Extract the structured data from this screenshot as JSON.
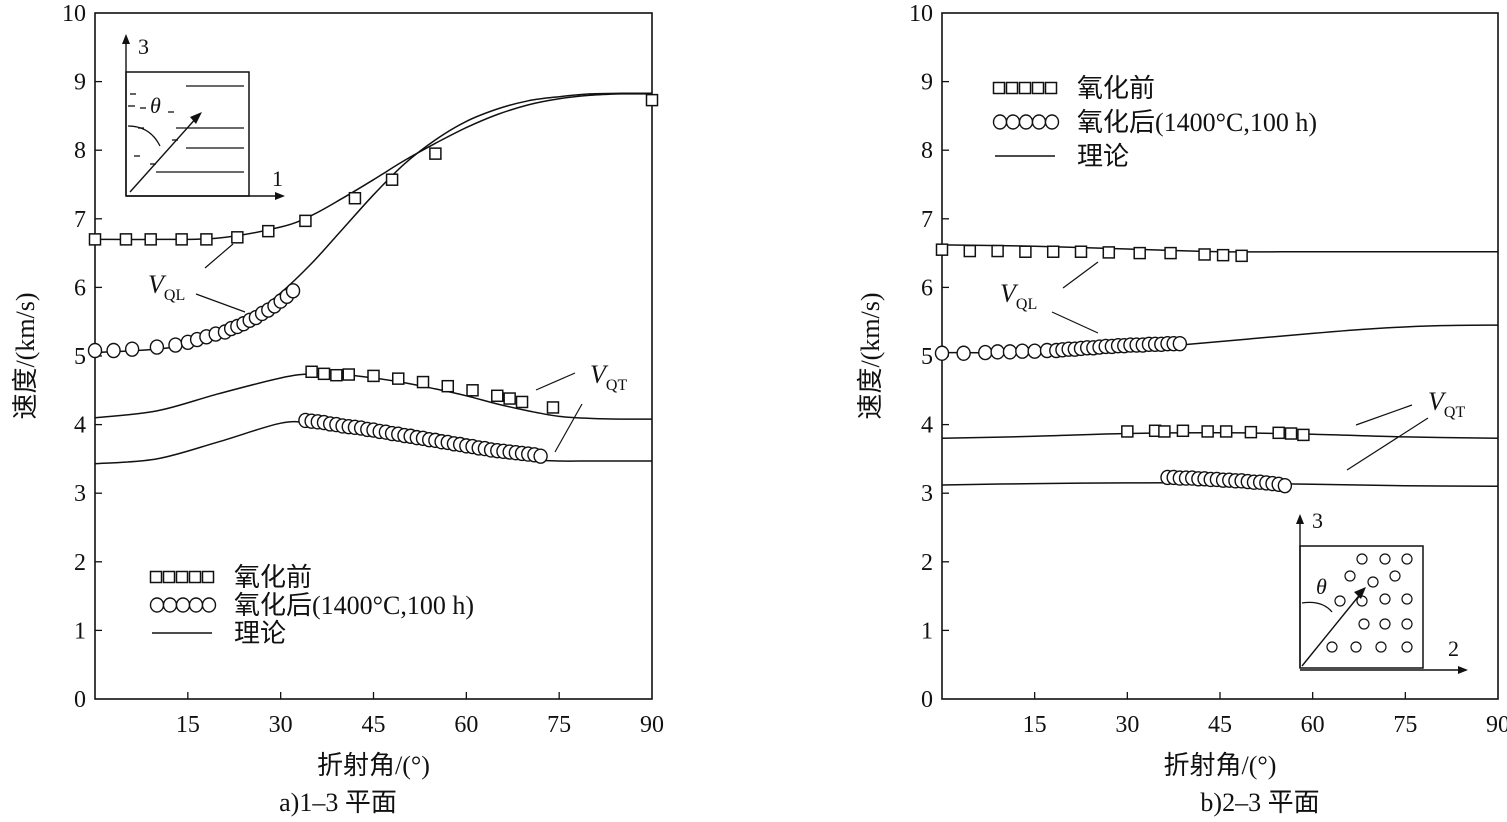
{
  "chart_data": [
    {
      "type": "scatter",
      "caption": "a)1–3 平面",
      "xlabel": "折射角/(°)",
      "ylabel": "速度/(km/s)",
      "xlim": [
        0,
        90
      ],
      "ylim": [
        0,
        10
      ],
      "xticks": [
        "15",
        "30",
        "45",
        "60",
        "75",
        "90"
      ],
      "yticks": [
        "0",
        "1",
        "2",
        "3",
        "4",
        "5",
        "6",
        "7",
        "8",
        "9",
        "10"
      ],
      "legend": {
        "placement": "bottom-left",
        "entries": [
          "氧化前",
          "氧化后(1400°C,100 h)",
          "理论"
        ]
      },
      "annotations": {
        "vql": "V",
        "vql_sub": "QL",
        "vqt": "V",
        "vqt_sub": "QT"
      },
      "inset": {
        "axis_vertical": "3",
        "axis_horizontal": "1",
        "angle": "θ"
      },
      "series": [
        {
          "name": "理论",
          "curve": "upper-ql",
          "x": [
            0,
            10,
            20,
            30,
            35,
            40,
            45,
            50,
            55,
            60,
            65,
            70,
            75,
            80,
            85,
            90
          ],
          "y": [
            6.7,
            6.7,
            6.72,
            6.88,
            7.05,
            7.3,
            7.57,
            7.85,
            8.1,
            8.33,
            8.52,
            8.66,
            8.75,
            8.8,
            8.82,
            8.82
          ]
        },
        {
          "name": "理论",
          "curve": "lower-ql",
          "x": [
            0,
            10,
            15,
            20,
            25,
            30,
            35,
            40,
            45,
            50,
            55,
            60,
            65,
            70,
            75,
            80,
            85,
            90
          ],
          "y": [
            5.05,
            5.1,
            5.18,
            5.33,
            5.58,
            5.92,
            6.35,
            6.85,
            7.35,
            7.8,
            8.15,
            8.42,
            8.6,
            8.72,
            8.78,
            8.82,
            8.83,
            8.83
          ]
        },
        {
          "name": "理论",
          "curve": "upper-qt",
          "x": [
            0,
            10,
            20,
            30,
            35,
            40,
            45,
            50,
            55,
            60,
            65,
            70,
            75,
            80,
            85,
            90
          ],
          "y": [
            4.1,
            4.2,
            4.45,
            4.68,
            4.74,
            4.73,
            4.68,
            4.61,
            4.52,
            4.42,
            4.3,
            4.2,
            4.12,
            4.09,
            4.08,
            4.08
          ]
        },
        {
          "name": "理论",
          "curve": "lower-qt",
          "x": [
            0,
            10,
            20,
            30,
            35,
            40,
            45,
            50,
            55,
            60,
            65,
            70,
            75,
            80,
            85,
            90
          ],
          "y": [
            3.43,
            3.5,
            3.75,
            4.02,
            4.02,
            3.95,
            3.87,
            3.8,
            3.72,
            3.64,
            3.55,
            3.49,
            3.47,
            3.47,
            3.47,
            3.47
          ]
        },
        {
          "name": "氧化前",
          "marker": "square",
          "x": [
            0,
            5,
            9,
            14,
            18,
            23,
            28,
            34,
            42,
            48,
            55,
            90,
            35,
            37,
            39,
            41,
            45,
            49,
            53,
            57,
            61,
            65,
            67,
            69,
            74
          ],
          "y": [
            6.7,
            6.7,
            6.7,
            6.7,
            6.7,
            6.73,
            6.82,
            6.97,
            7.3,
            7.57,
            7.95,
            8.73,
            4.77,
            4.74,
            4.72,
            4.73,
            4.71,
            4.67,
            4.62,
            4.56,
            4.5,
            4.42,
            4.38,
            4.33,
            4.25
          ]
        },
        {
          "name": "氧化后(1400°C,100 h)",
          "marker": "circle",
          "x": [
            0,
            3,
            6,
            10,
            13,
            15,
            16.5,
            18,
            19.5,
            21,
            22,
            23,
            24,
            25,
            26,
            27,
            28,
            29,
            30,
            31,
            32,
            34,
            35,
            36,
            37,
            38,
            39,
            40,
            41,
            42,
            43,
            44,
            45,
            46,
            47,
            48,
            49,
            50,
            51,
            52,
            53,
            54,
            55,
            56,
            57,
            58,
            59,
            60,
            61,
            62,
            63,
            64,
            65,
            66,
            67,
            68,
            69,
            70,
            71,
            72
          ],
          "y": [
            5.08,
            5.08,
            5.1,
            5.13,
            5.16,
            5.2,
            5.24,
            5.28,
            5.32,
            5.35,
            5.4,
            5.43,
            5.47,
            5.52,
            5.56,
            5.62,
            5.67,
            5.73,
            5.8,
            5.87,
            5.95,
            4.06,
            4.05,
            4.04,
            4.03,
            4.01,
            4.0,
            3.98,
            3.97,
            3.96,
            3.95,
            3.93,
            3.92,
            3.9,
            3.89,
            3.87,
            3.86,
            3.84,
            3.83,
            3.81,
            3.8,
            3.78,
            3.77,
            3.75,
            3.74,
            3.72,
            3.71,
            3.69,
            3.68,
            3.66,
            3.65,
            3.63,
            3.62,
            3.61,
            3.6,
            3.59,
            3.58,
            3.57,
            3.56,
            3.54
          ]
        }
      ]
    },
    {
      "type": "scatter",
      "caption": "b)2–3 平面",
      "xlabel": "折射角/(°)",
      "ylabel": "速度/(km/s)",
      "xlim": [
        0,
        90
      ],
      "ylim": [
        0,
        10
      ],
      "xticks": [
        "15",
        "30",
        "45",
        "60",
        "75",
        "90"
      ],
      "yticks": [
        "0",
        "1",
        "2",
        "3",
        "4",
        "5",
        "6",
        "7",
        "8",
        "9",
        "10"
      ],
      "legend": {
        "placement": "top-left",
        "entries": [
          "氧化前",
          "氧化后(1400°C,100 h)",
          "理论"
        ]
      },
      "annotations": {
        "vql": "V",
        "vql_sub": "QL",
        "vqt": "V",
        "vqt_sub": "QT"
      },
      "inset": {
        "axis_vertical": "3",
        "axis_horizontal": "2",
        "angle": "θ"
      },
      "series": [
        {
          "name": "理论",
          "curve": "upper-ql",
          "x": [
            0,
            15,
            30,
            45,
            60,
            75,
            90
          ],
          "y": [
            6.62,
            6.6,
            6.56,
            6.52,
            6.52,
            6.52,
            6.52
          ]
        },
        {
          "name": "理论",
          "curve": "lower-ql",
          "x": [
            0,
            15,
            30,
            40,
            50,
            60,
            70,
            80,
            90
          ],
          "y": [
            5.05,
            5.05,
            5.1,
            5.17,
            5.25,
            5.33,
            5.4,
            5.44,
            5.45
          ]
        },
        {
          "name": "理论",
          "curve": "upper-qt",
          "x": [
            0,
            15,
            30,
            45,
            60,
            75,
            90
          ],
          "y": [
            3.8,
            3.83,
            3.87,
            3.88,
            3.86,
            3.82,
            3.8
          ]
        },
        {
          "name": "理论",
          "curve": "lower-qt",
          "x": [
            0,
            15,
            30,
            45,
            60,
            75,
            90
          ],
          "y": [
            3.12,
            3.14,
            3.15,
            3.15,
            3.13,
            3.11,
            3.1
          ]
        },
        {
          "name": "氧化前",
          "marker": "square",
          "x": [
            0,
            4.5,
            9,
            13.5,
            18,
            22.5,
            27,
            32,
            37,
            42.5,
            45.5,
            48.5,
            30,
            34.5,
            36,
            39,
            43,
            46,
            50,
            54.5,
            56.5,
            58.5
          ],
          "y": [
            6.55,
            6.53,
            6.53,
            6.52,
            6.52,
            6.52,
            6.51,
            6.5,
            6.5,
            6.48,
            6.47,
            6.46,
            3.9,
            3.91,
            3.9,
            3.91,
            3.9,
            3.9,
            3.89,
            3.88,
            3.87,
            3.85
          ]
        },
        {
          "name": "氧化后(1400°C,100 h)",
          "marker": "circle",
          "x": [
            0,
            3.5,
            7,
            9,
            11,
            13,
            15,
            17,
            18.5,
            19.5,
            20.5,
            21.5,
            22.5,
            23.5,
            24.5,
            25.5,
            26.5,
            27.5,
            28.5,
            29.5,
            30.5,
            31.5,
            32.5,
            33.5,
            34.5,
            35.5,
            36.5,
            37.5,
            38.5,
            36.5,
            37.5,
            38.5,
            39.5,
            40.5,
            41.5,
            42.5,
            43.5,
            44.5,
            45.5,
            46.5,
            47.5,
            48.5,
            49.5,
            50.5,
            51.5,
            52.5,
            53.5,
            54.5,
            55.5
          ],
          "y": [
            5.04,
            5.04,
            5.05,
            5.06,
            5.06,
            5.07,
            5.07,
            5.08,
            5.08,
            5.09,
            5.1,
            5.1,
            5.11,
            5.12,
            5.12,
            5.13,
            5.14,
            5.14,
            5.15,
            5.15,
            5.16,
            5.16,
            5.16,
            5.17,
            5.17,
            5.17,
            5.18,
            5.18,
            5.18,
            3.23,
            3.23,
            3.22,
            3.22,
            3.22,
            3.21,
            3.21,
            3.2,
            3.2,
            3.19,
            3.19,
            3.18,
            3.18,
            3.17,
            3.16,
            3.16,
            3.15,
            3.14,
            3.13,
            3.11
          ]
        }
      ]
    }
  ]
}
